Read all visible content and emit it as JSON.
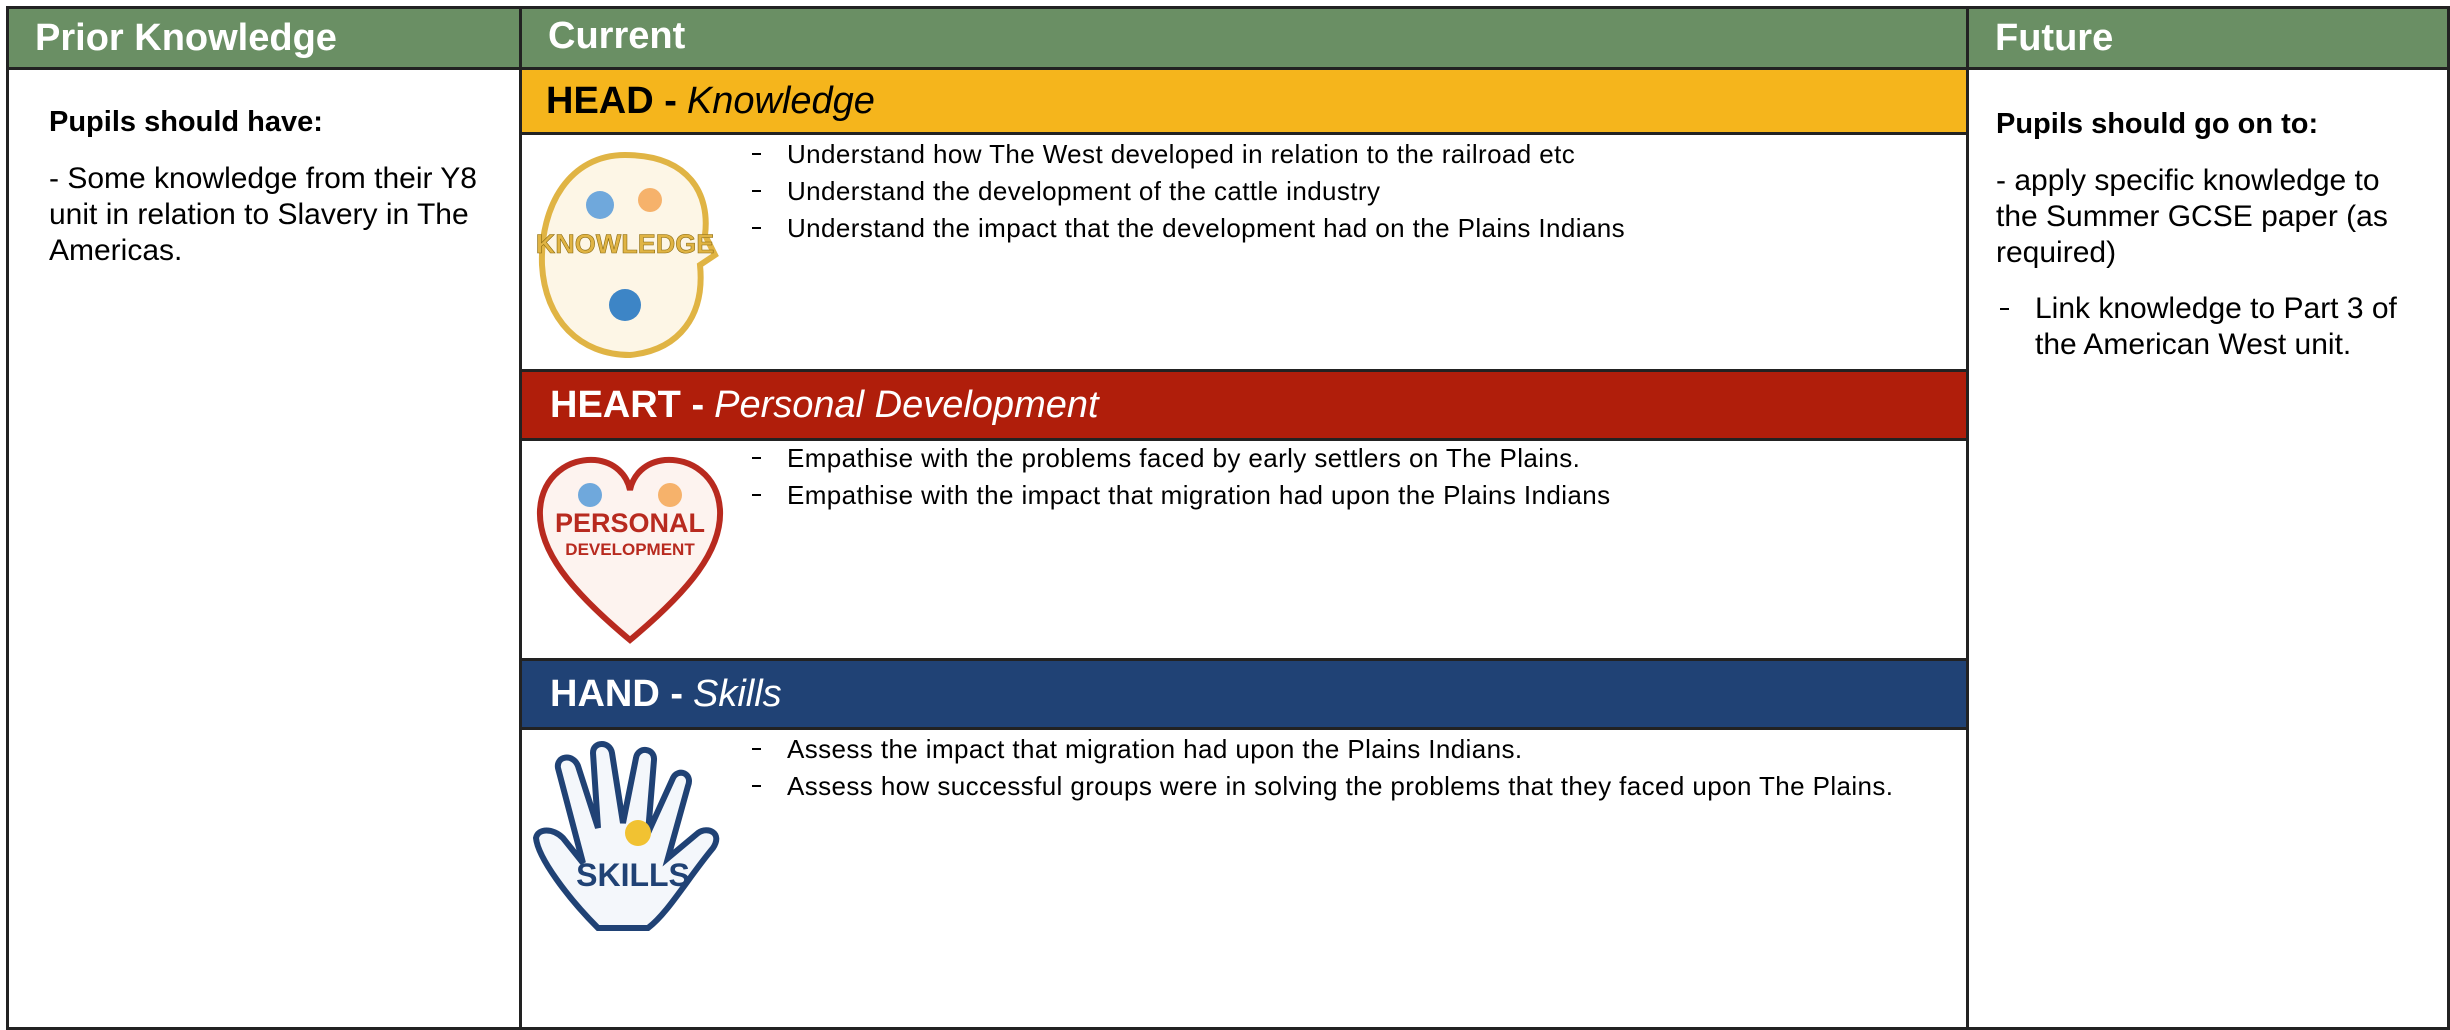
{
  "header": {
    "prior": "Prior Knowledge",
    "current": "Current",
    "future": "Future"
  },
  "prior": {
    "heading": "Pupils should have:",
    "text": "- Some knowledge from their Y8 unit in relation to Slavery in The Americas."
  },
  "sections": [
    {
      "title": "HEAD -",
      "subtitle": "Knowledge",
      "icon_label": "KNOWLEDGE",
      "items": [
        "Understand how The West developed in relation to the railroad etc",
        "Understand the development of the cattle industry",
        "Understand the impact that the development had on the Plains Indians"
      ]
    },
    {
      "title": "HEART -",
      "subtitle": "Personal Development",
      "icon_label": [
        "PERSONAL",
        "DEVELOPMENT"
      ],
      "items": [
        "Empathise with the problems faced by early settlers on The Plains.",
        "Empathise with the impact that migration had upon the Plains Indians"
      ]
    },
    {
      "title": "HAND -",
      "subtitle": "Skills",
      "icon_label": "SKILLS",
      "items": [
        "Assess the impact that migration had upon the Plains Indians.",
        "Assess how successful groups were in solving the problems that they faced upon The Plains."
      ]
    }
  ],
  "future": {
    "heading": "Pupils should go on to:",
    "text": "- apply specific knowledge to the Summer GCSE paper (as required)",
    "items": [
      "Link knowledge to Part 3 of the American West unit."
    ]
  }
}
